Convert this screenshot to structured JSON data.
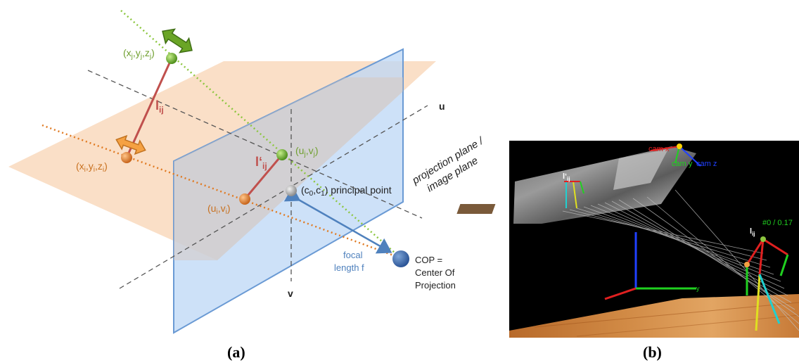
{
  "panel_a": {
    "caption": "(a)",
    "labels": {
      "xj": "(x",
      "xj_sub1": "j",
      "xj_mid1": ",y",
      "xj_sub2": "j",
      "xj_mid2": ",z",
      "xj_sub3": "j",
      "xj_end": ")",
      "xi": "(x",
      "xi_sub1": "i",
      "xi_mid1": ",y",
      "xi_sub2": "i",
      "xi_mid2": ",z",
      "xi_sub3": "i",
      "xi_end": ")",
      "lij": "l",
      "lij_sub": "ij",
      "lij_prime": "l‘",
      "lij_prime_sub": "ij",
      "uj": "(u",
      "uj_sub1": "j",
      "uj_mid": ",v",
      "uj_sub2": "j",
      "uj_end": ")",
      "ui": "(u",
      "ui_sub1": "i",
      "ui_mid": ",v",
      "ui_sub2": "i",
      "ui_end": ")",
      "pp_a": "(c",
      "pp_sub1": "0",
      "pp_mid": ",c",
      "pp_sub2": "1",
      "pp_end": ") principal point",
      "axis_u": "u",
      "axis_v": "v",
      "focal_1": "focal",
      "focal_2": "length f",
      "cop_1": "COP =",
      "cop_2": "Center Of",
      "cop_3": "Projection",
      "plane_1": "projection plane /",
      "plane_2": "image plane"
    }
  },
  "panel_b": {
    "caption": "(b)",
    "labels": {
      "cam_x": "cam x",
      "cam_y": "cam y",
      "cam_z": "cam z",
      "lij_prime": "l‘",
      "lij_prime_sub": "ij",
      "lij": "l",
      "lij_sub": "ij",
      "counter": "#0  / 0.17",
      "axis_y": "y"
    }
  },
  "colors": {
    "ground": "#f9d9bd",
    "plane": "#bcd7f5",
    "plane_edge": "#6a9ad4",
    "green": "#6aa526",
    "orange": "#e07a22",
    "red": "#c0504d",
    "blue_text": "#4f81bd",
    "green_text": "#6f9f2e",
    "orange_text": "#c8701e"
  }
}
